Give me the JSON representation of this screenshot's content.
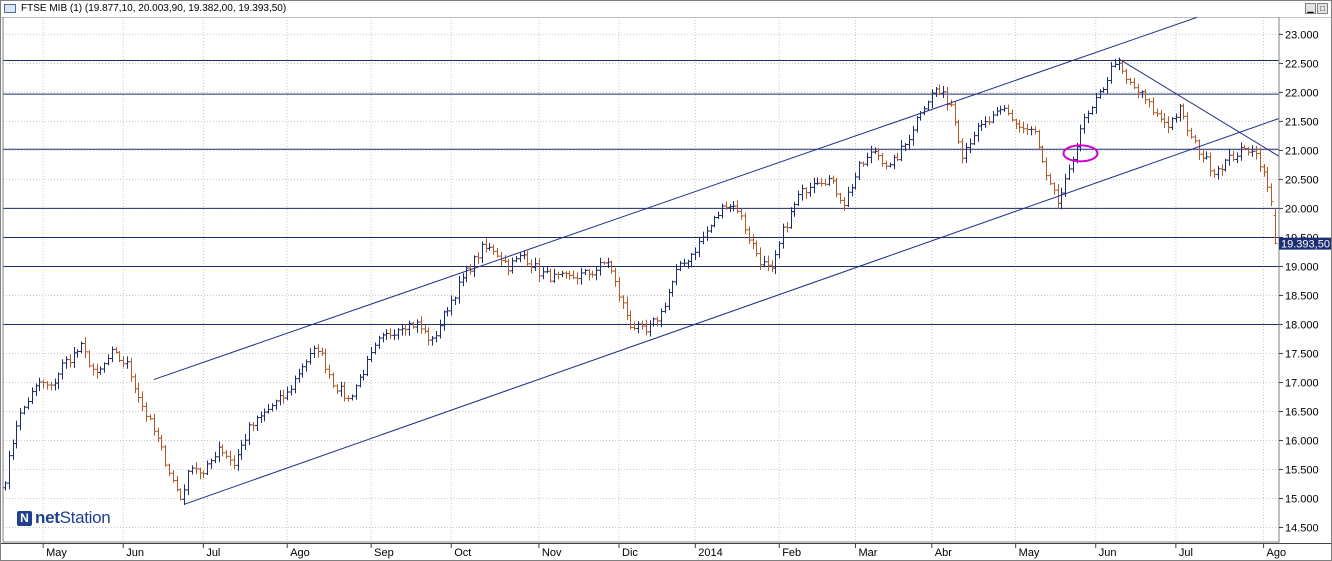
{
  "window": {
    "title": "FTSE MIB (1) (19.877,10, 20.003,90, 19.382,00, 19.393,50)",
    "buttons": [
      "minimize",
      "maximize"
    ]
  },
  "logo": {
    "mark": "N",
    "text_bold": "net",
    "text_rest": "Station"
  },
  "colors": {
    "up": "#1e2c6e",
    "down": "#b35a2a",
    "grid": "#c8c8c8",
    "level": "#1e2c6e",
    "trend": "#1f2d8a",
    "highlight": "#d000d0",
    "price_tag_bg": "#1c2f75"
  },
  "chart_data": {
    "type": "ohlc",
    "instrument": "FTSE MIB",
    "last_price_label": "19.393,50",
    "last_price": 19393.5,
    "ylim": [
      14250,
      23300
    ],
    "y_ticks": [
      {
        "v": 14500,
        "label": "14.500"
      },
      {
        "v": 15000,
        "label": "15.000"
      },
      {
        "v": 15500,
        "label": "15.500"
      },
      {
        "v": 16000,
        "label": "16.000"
      },
      {
        "v": 16500,
        "label": "16.500"
      },
      {
        "v": 17000,
        "label": "17.000"
      },
      {
        "v": 17500,
        "label": "17.500"
      },
      {
        "v": 18000,
        "label": "18.000"
      },
      {
        "v": 18500,
        "label": "18.500"
      },
      {
        "v": 19000,
        "label": "19.000"
      },
      {
        "v": 19500,
        "label": "19.500"
      },
      {
        "v": 20000,
        "label": "20.000"
      },
      {
        "v": 20500,
        "label": "20.500"
      },
      {
        "v": 21000,
        "label": "21.000"
      },
      {
        "v": 21500,
        "label": "21.500"
      },
      {
        "v": 22000,
        "label": "22.000"
      },
      {
        "v": 22500,
        "label": "22.500"
      },
      {
        "v": 23000,
        "label": "23.000"
      }
    ],
    "x_ticks": [
      {
        "i": 10,
        "label": "May"
      },
      {
        "i": 31,
        "label": "Jun"
      },
      {
        "i": 52,
        "label": "Jul"
      },
      {
        "i": 74,
        "label": "Ago"
      },
      {
        "i": 96,
        "label": "Sep"
      },
      {
        "i": 117,
        "label": "Oct"
      },
      {
        "i": 140,
        "label": "Nov"
      },
      {
        "i": 161,
        "label": "Dic"
      },
      {
        "i": 181,
        "label": "2014"
      },
      {
        "i": 203,
        "label": "Feb"
      },
      {
        "i": 223,
        "label": "Mar"
      },
      {
        "i": 243,
        "label": "Abr"
      },
      {
        "i": 265,
        "label": "May"
      },
      {
        "i": 286,
        "label": "Jun"
      },
      {
        "i": 307,
        "label": "Jul"
      },
      {
        "i": 330,
        "label": "Ago"
      }
    ],
    "n_bars": 334,
    "anchors": [
      [
        0,
        15350
      ],
      [
        3,
        16300
      ],
      [
        6,
        16700
      ],
      [
        9,
        17000
      ],
      [
        12,
        16900
      ],
      [
        15,
        17300
      ],
      [
        20,
        17600
      ],
      [
        24,
        17100
      ],
      [
        28,
        17500
      ],
      [
        32,
        17300
      ],
      [
        36,
        16600
      ],
      [
        40,
        16000
      ],
      [
        44,
        15300
      ],
      [
        46,
        15000
      ],
      [
        49,
        15600
      ],
      [
        52,
        15400
      ],
      [
        56,
        15900
      ],
      [
        60,
        15600
      ],
      [
        64,
        16200
      ],
      [
        70,
        16600
      ],
      [
        74,
        16800
      ],
      [
        78,
        17300
      ],
      [
        82,
        17600
      ],
      [
        86,
        17000
      ],
      [
        90,
        16700
      ],
      [
        94,
        17200
      ],
      [
        98,
        17700
      ],
      [
        104,
        18000
      ],
      [
        108,
        18000
      ],
      [
        112,
        17700
      ],
      [
        116,
        18300
      ],
      [
        121,
        18900
      ],
      [
        125,
        19300
      ],
      [
        128,
        19300
      ],
      [
        132,
        19000
      ],
      [
        136,
        19200
      ],
      [
        140,
        18900
      ],
      [
        144,
        18800
      ],
      [
        148,
        18800
      ],
      [
        154,
        18900
      ],
      [
        158,
        19100
      ],
      [
        161,
        18500
      ],
      [
        164,
        18000
      ],
      [
        168,
        17850
      ],
      [
        172,
        18200
      ],
      [
        176,
        18900
      ],
      [
        181,
        19300
      ],
      [
        185,
        19700
      ],
      [
        189,
        20100
      ],
      [
        192,
        20000
      ],
      [
        195,
        19500
      ],
      [
        198,
        19100
      ],
      [
        201,
        18900
      ],
      [
        204,
        19600
      ],
      [
        208,
        20200
      ],
      [
        212,
        20500
      ],
      [
        216,
        20500
      ],
      [
        220,
        20100
      ],
      [
        224,
        20700
      ],
      [
        228,
        21000
      ],
      [
        232,
        20700
      ],
      [
        236,
        21100
      ],
      [
        240,
        21700
      ],
      [
        244,
        22050
      ],
      [
        248,
        21800
      ],
      [
        251,
        20950
      ],
      [
        254,
        21300
      ],
      [
        258,
        21500
      ],
      [
        262,
        21700
      ],
      [
        266,
        21400
      ],
      [
        270,
        21300
      ],
      [
        273,
        20500
      ],
      [
        276,
        20100
      ],
      [
        279,
        20600
      ],
      [
        282,
        21400
      ],
      [
        285,
        21700
      ],
      [
        288,
        22100
      ],
      [
        291,
        22550
      ],
      [
        294,
        22200
      ],
      [
        298,
        21950
      ],
      [
        302,
        21600
      ],
      [
        305,
        21450
      ],
      [
        308,
        21700
      ],
      [
        311,
        21200
      ],
      [
        314,
        20900
      ],
      [
        317,
        20650
      ],
      [
        320,
        20800
      ],
      [
        323,
        20950
      ],
      [
        327,
        21050
      ],
      [
        329,
        20800
      ],
      [
        331,
        20350
      ],
      [
        333,
        19800
      ]
    ],
    "last_bar": {
      "i": 333,
      "open": 19877.1,
      "high": 20003.9,
      "low": 19382.0,
      "close": 19393.5
    },
    "horizontal_levels": [
      22550,
      21970,
      21020,
      20000,
      19500,
      19000,
      18000
    ],
    "trendlines": [
      {
        "name": "upper-channel",
        "from": [
          39,
          17050
        ],
        "to": [
          315,
          23350
        ]
      },
      {
        "name": "lower-channel",
        "from": [
          47,
          14900
        ],
        "to": [
          334,
          21550
        ]
      },
      {
        "name": "resistance",
        "from": [
          292,
          22580
        ],
        "to": [
          334,
          20900
        ]
      }
    ],
    "highlight": {
      "shape": "ellipse",
      "i": 282,
      "v": 20950
    }
  }
}
